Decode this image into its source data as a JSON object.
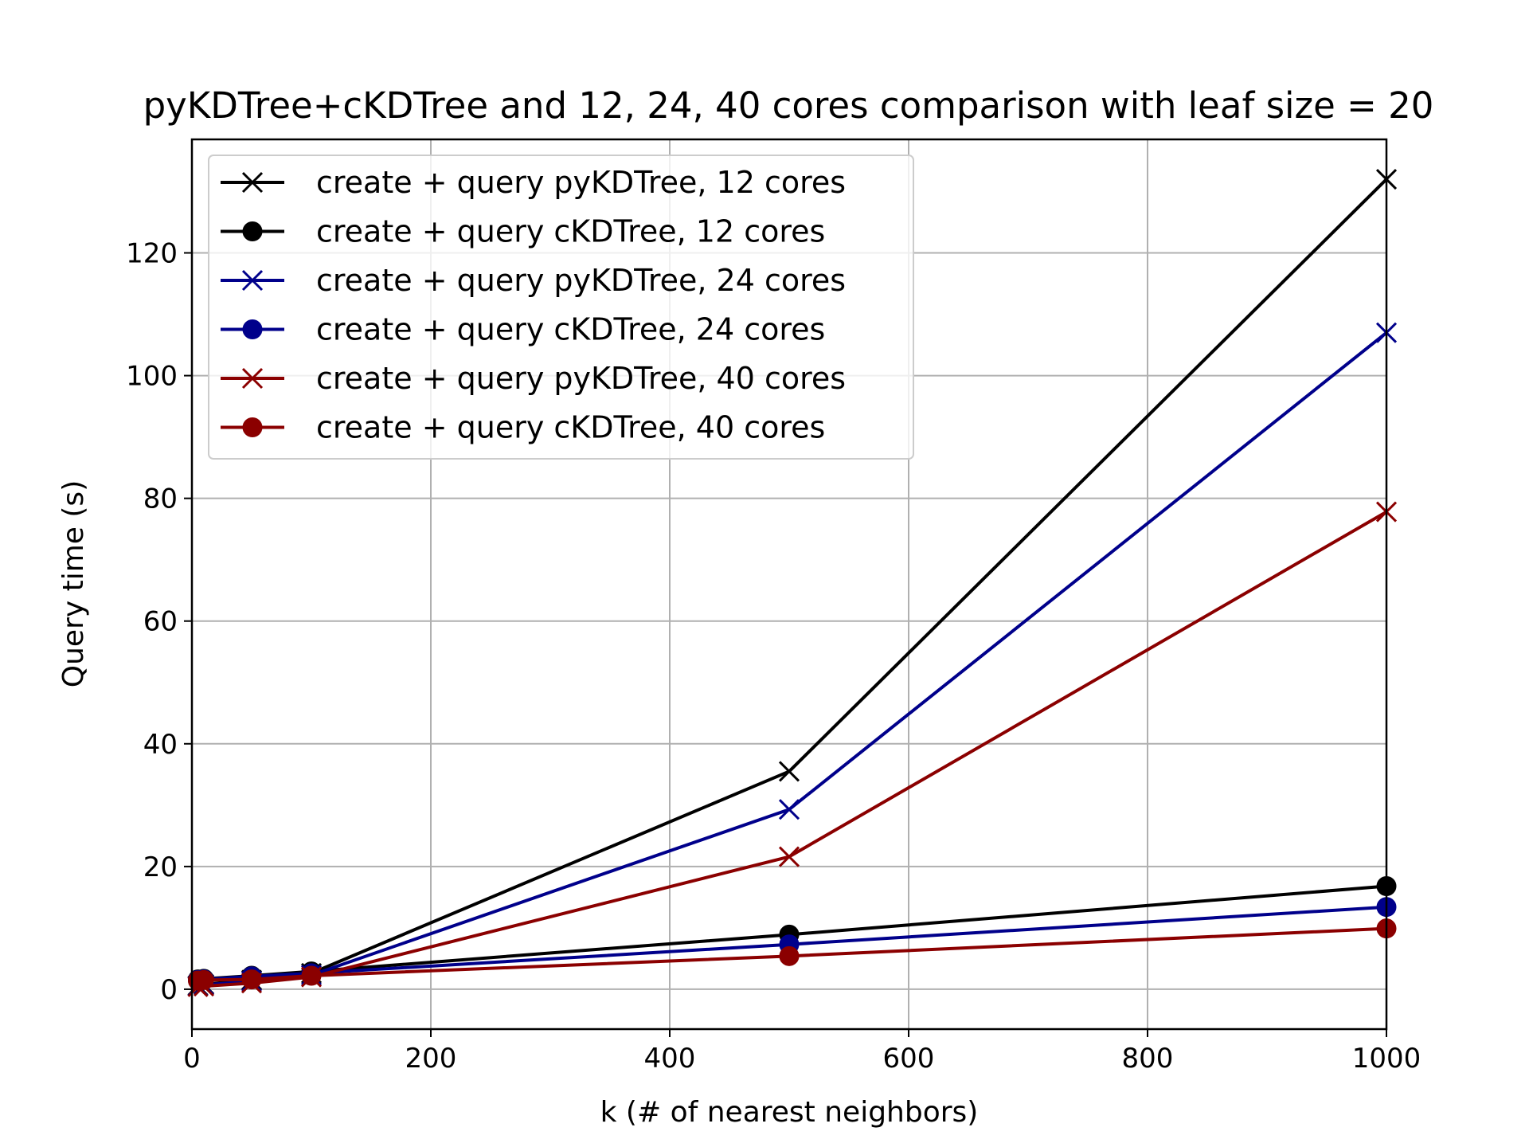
{
  "chart_data": {
    "type": "line",
    "title": "pyKDTree+cKDTree and 12, 24, 40 cores comparison with leaf size = 20",
    "xlabel": "k (# of nearest neighbors)",
    "ylabel": "Query time (s)",
    "xlim": [
      0,
      1000
    ],
    "ylim": [
      -6.5,
      138.5
    ],
    "xticks": [
      0,
      200,
      400,
      600,
      800,
      1000
    ],
    "yticks": [
      0,
      20,
      40,
      60,
      80,
      100,
      120
    ],
    "grid": true,
    "legend_position": "top-left",
    "series": [
      {
        "name": "create + query pyKDTree, 12 cores",
        "color": "#000000",
        "marker": "x",
        "x": [
          5,
          10,
          50,
          100,
          500,
          1000
        ],
        "y": [
          0.6,
          0.8,
          1.5,
          2.6,
          35.5,
          132.0
        ]
      },
      {
        "name": "create + query cKDTree, 12 cores",
        "color": "#000000",
        "marker": "o",
        "x": [
          5,
          10,
          50,
          100,
          500,
          1000
        ],
        "y": [
          1.6,
          1.7,
          2.2,
          2.9,
          8.9,
          16.8
        ]
      },
      {
        "name": "create + query pyKDTree, 24 cores",
        "color": "#00008b",
        "marker": "x",
        "x": [
          5,
          10,
          50,
          100,
          500,
          1000
        ],
        "y": [
          0.5,
          0.7,
          1.3,
          2.3,
          29.3,
          107.0
        ]
      },
      {
        "name": "create + query cKDTree, 24 cores",
        "color": "#00008b",
        "marker": "o",
        "x": [
          5,
          10,
          50,
          100,
          500,
          1000
        ],
        "y": [
          1.5,
          1.6,
          2.1,
          2.6,
          7.3,
          13.4
        ]
      },
      {
        "name": "create + query pyKDTree, 40 cores",
        "color": "#8b0000",
        "marker": "x",
        "x": [
          5,
          10,
          50,
          100,
          500,
          1000
        ],
        "y": [
          0.4,
          0.5,
          1.0,
          2.0,
          21.6,
          77.8
        ]
      },
      {
        "name": "create + query cKDTree, 40 cores",
        "color": "#8b0000",
        "marker": "o",
        "x": [
          5,
          10,
          50,
          100,
          500,
          1000
        ],
        "y": [
          1.4,
          1.5,
          1.6,
          2.2,
          5.4,
          9.9
        ]
      }
    ]
  }
}
